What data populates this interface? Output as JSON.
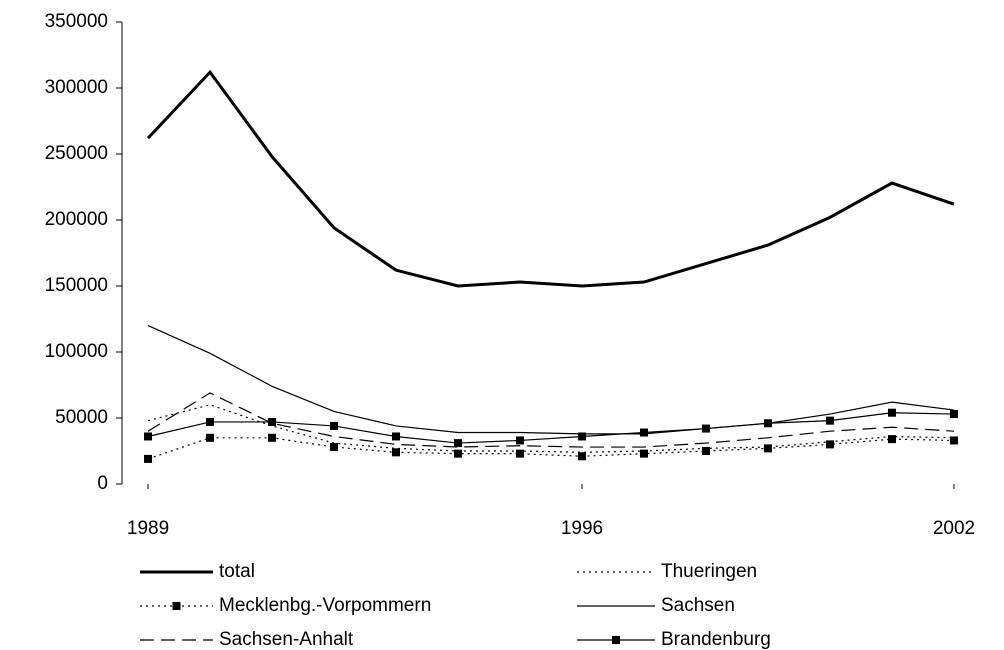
{
  "chart_data": {
    "type": "line",
    "x": [
      1989,
      1990,
      1991,
      1992,
      1993,
      1994,
      1995,
      1996,
      1997,
      1998,
      1999,
      2000,
      2001,
      2002
    ],
    "xlim": [
      1988.58,
      2002.42
    ],
    "xticks": [
      1989,
      1996,
      2002
    ],
    "ylim": [
      0,
      350000
    ],
    "yticks": [
      0,
      50000,
      100000,
      150000,
      200000,
      250000,
      300000,
      350000
    ],
    "legend": "bottom",
    "series": [
      {
        "name": "total",
        "color": "#000000",
        "width": 3,
        "dash": "none",
        "marker": "none",
        "values": [
          262000,
          312000,
          248000,
          194000,
          162000,
          150000,
          153000,
          150000,
          153000,
          167000,
          181000,
          202000,
          228000,
          212000
        ]
      },
      {
        "name": "Thueringen",
        "color": "#000000",
        "width": 1.2,
        "dash": "dotted",
        "marker": "none",
        "values": [
          48000,
          60000,
          44000,
          31000,
          27000,
          25000,
          25000,
          24000,
          25000,
          27000,
          28000,
          32000,
          36000,
          35000
        ]
      },
      {
        "name": "Mecklenbg.-Vorpommern",
        "color": "#000000",
        "width": 1.2,
        "dash": "dotted",
        "marker": "square",
        "values": [
          19000,
          35000,
          35000,
          28000,
          24000,
          23000,
          23000,
          21000,
          23000,
          25000,
          27000,
          30000,
          34000,
          33000
        ]
      },
      {
        "name": "Sachsen",
        "color": "#000000",
        "width": 1.2,
        "dash": "none",
        "marker": "none",
        "values": [
          120000,
          99000,
          74000,
          55000,
          44000,
          39000,
          39000,
          38000,
          38000,
          42000,
          46000,
          53000,
          62000,
          56000
        ]
      },
      {
        "name": "Sachsen-Anhalt",
        "color": "#000000",
        "width": 1.2,
        "dash": "dashed",
        "marker": "none",
        "values": [
          40000,
          69000,
          46000,
          36000,
          30000,
          28000,
          29000,
          28000,
          28000,
          31000,
          35000,
          40000,
          43000,
          40000
        ]
      },
      {
        "name": "Brandenburg",
        "color": "#000000",
        "width": 1.2,
        "dash": "none",
        "marker": "square",
        "values": [
          36000,
          47000,
          47000,
          44000,
          36000,
          31000,
          33000,
          36000,
          39000,
          42000,
          46000,
          48000,
          54000,
          53000
        ]
      }
    ]
  }
}
